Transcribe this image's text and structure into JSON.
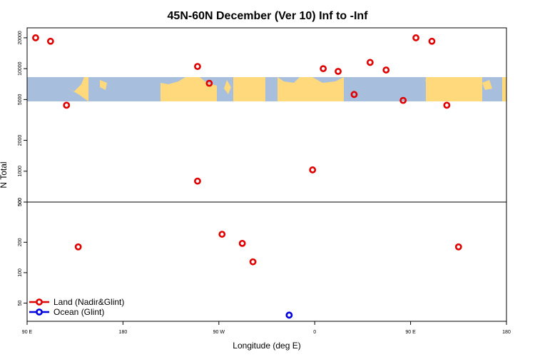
{
  "chart_data": {
    "type": "scatter",
    "title": "45N-60N December (Ver 10)   Inf to -Inf",
    "xlabel": "Longitude (deg E)",
    "ylabel": "N Total",
    "xlim": [
      90,
      540
    ],
    "x_ticks": [
      {
        "value": 90,
        "label": "90 E"
      },
      {
        "value": 180,
        "label": "180"
      },
      {
        "value": 270,
        "label": "90 W"
      },
      {
        "value": 360,
        "label": "0"
      },
      {
        "value": 450,
        "label": "90 E"
      },
      {
        "value": 540,
        "label": "180"
      }
    ],
    "y_scale": "log",
    "y_upper_ticks": [
      {
        "value": 500,
        "label": "500"
      },
      {
        "value": 1000,
        "label": "1000"
      },
      {
        "value": 2000,
        "label": "2000"
      },
      {
        "value": 5000,
        "label": "5000"
      },
      {
        "value": 10000,
        "label": "10000"
      },
      {
        "value": 20000,
        "label": "20000"
      }
    ],
    "y_lower_ticks": [
      {
        "value": 50,
        "label": "50"
      },
      {
        "value": 100,
        "label": "100"
      },
      {
        "value": 200,
        "label": "200"
      },
      {
        "value": 500,
        "label": "500"
      }
    ],
    "map_strip": {
      "ocean_color": "#A8BEDD",
      "land_color": "#FFD97C"
    },
    "series": [
      {
        "name": "Land (Nadir&Glint)",
        "color": "#E00000",
        "points": [
          {
            "x": 98,
            "y": 20000,
            "panel": "upper"
          },
          {
            "x": 112,
            "y": 18500,
            "panel": "upper"
          },
          {
            "x": 127,
            "y": 4400,
            "panel": "upper"
          },
          {
            "x": 138,
            "y": 180,
            "panel": "lower"
          },
          {
            "x": 250,
            "y": 800,
            "panel": "upper"
          },
          {
            "x": 250,
            "y": 10500,
            "panel": "upper"
          },
          {
            "x": 261,
            "y": 7200,
            "panel": "upper"
          },
          {
            "x": 273,
            "y": 240,
            "panel": "lower"
          },
          {
            "x": 292,
            "y": 195,
            "panel": "lower"
          },
          {
            "x": 302,
            "y": 128,
            "panel": "lower"
          },
          {
            "x": 358,
            "y": 1030,
            "panel": "upper"
          },
          {
            "x": 368,
            "y": 10000,
            "panel": "upper"
          },
          {
            "x": 382,
            "y": 9400,
            "panel": "upper"
          },
          {
            "x": 397,
            "y": 5600,
            "panel": "upper"
          },
          {
            "x": 412,
            "y": 11500,
            "panel": "upper"
          },
          {
            "x": 427,
            "y": 9700,
            "panel": "upper"
          },
          {
            "x": 443,
            "y": 4900,
            "panel": "upper"
          },
          {
            "x": 455,
            "y": 20000,
            "panel": "upper"
          },
          {
            "x": 470,
            "y": 18500,
            "panel": "upper"
          },
          {
            "x": 484,
            "y": 4400,
            "panel": "upper"
          },
          {
            "x": 495,
            "y": 180,
            "panel": "lower"
          }
        ]
      },
      {
        "name": "Ocean (Glint)",
        "color": "#0000E0",
        "points": [
          {
            "x": 336,
            "y": 38,
            "panel": "lower"
          }
        ]
      }
    ],
    "legend_position": "bottom-left"
  }
}
